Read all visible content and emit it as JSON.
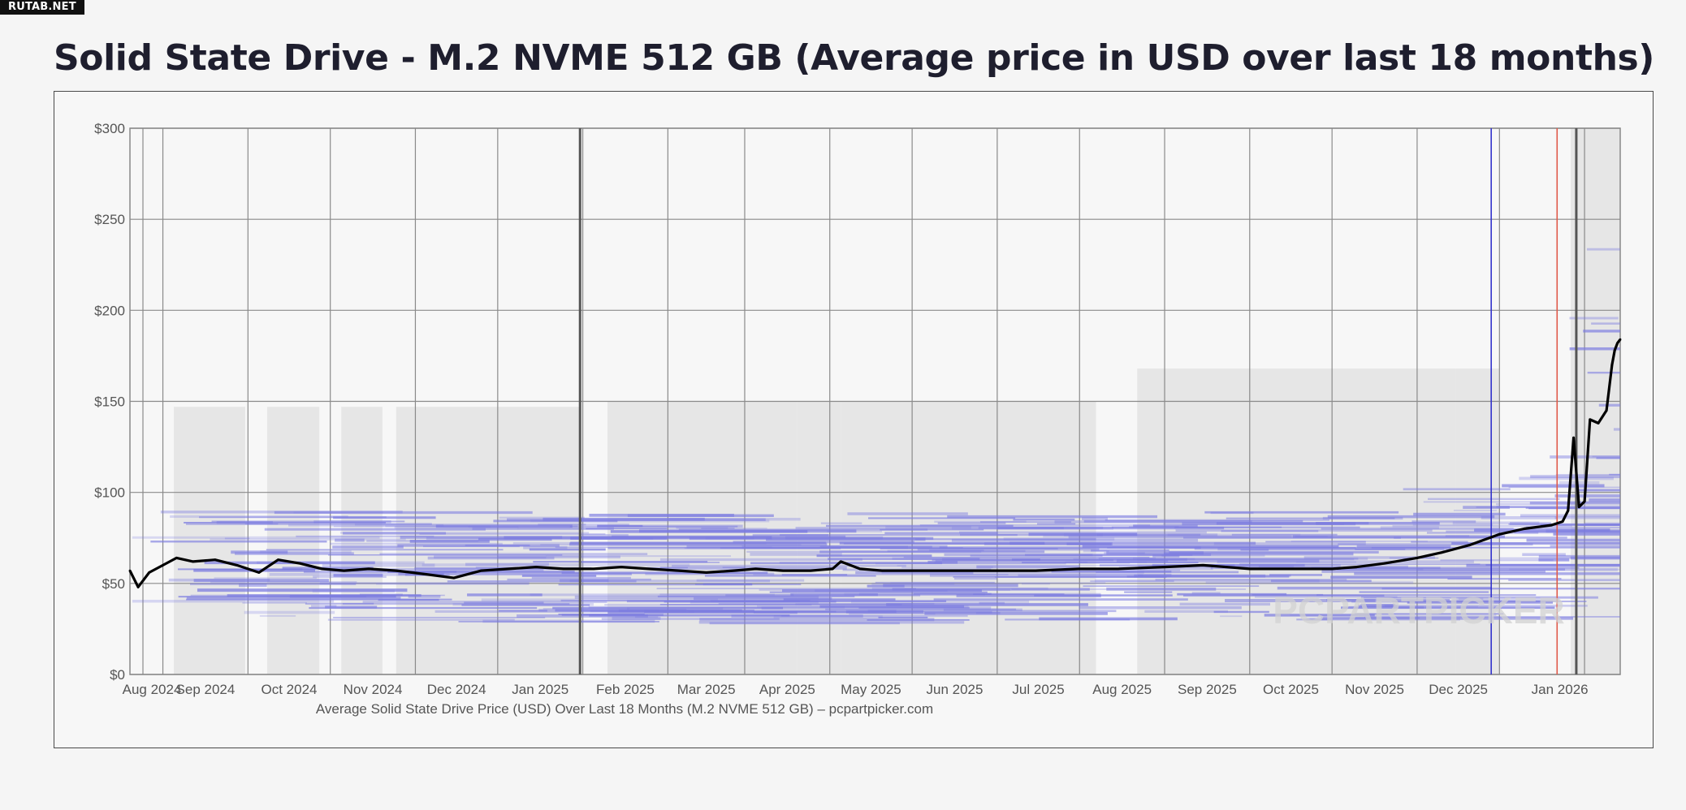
{
  "badge": "RUTAB.NET",
  "title": "Solid State Drive - M.2 NVME 512 GB (Average price in USD over last 18 months)",
  "watermark": "PCPARTPICKER",
  "colors": {
    "average_line": "#000000",
    "retailer_price_lines": "#7b7be0",
    "price_range_band": "#e6e6e6",
    "marker_blue": "#3333cc",
    "marker_red": "#e05a4a",
    "marker_dark": "#555555"
  },
  "chart_data": {
    "type": "line",
    "title": "",
    "xlabel": "Average Solid State Drive Price (USD) Over Last 18 Months (M.2 NVME 512 GB) – pcpartpicker.com",
    "ylabel": "",
    "ylim": [
      0,
      300
    ],
    "xlim": [
      "2024-07-20",
      "2026-01-14"
    ],
    "yticks": [
      0,
      50,
      100,
      150,
      200,
      250,
      300
    ],
    "yticklabels": [
      "$0",
      "$50",
      "$100",
      "$150",
      "$200",
      "$250",
      "$300"
    ],
    "xticklabels": [
      "Aug 2024",
      "Sep 2024",
      "Oct 2024",
      "Nov 2024",
      "Dec 2024",
      "Jan 2025",
      "Feb 2025",
      "Mar 2025",
      "Apr 2025",
      "May 2025",
      "Jun 2025",
      "Jul 2025",
      "Aug 2025",
      "Sep 2025",
      "Oct 2025",
      "Nov 2025",
      "Dec 2025",
      "Jan 2026"
    ],
    "grid": true,
    "legend": "none",
    "series": [
      {
        "x": [
          "2024-07-20",
          "2024-07-23",
          "2024-07-27",
          "2024-08-01",
          "2024-08-06",
          "2024-08-12",
          "2024-08-20",
          "2024-08-28",
          "2024-09-05",
          "2024-09-12",
          "2024-09-20",
          "2024-09-28",
          "2024-10-06",
          "2024-10-15",
          "2024-10-25",
          "2024-11-05",
          "2024-11-15",
          "2024-11-25",
          "2024-12-05",
          "2024-12-15",
          "2024-12-25",
          "2025-01-05",
          "2025-01-15",
          "2025-01-25",
          "2025-02-05",
          "2025-02-15",
          "2025-02-25",
          "2025-03-05",
          "2025-03-15",
          "2025-03-25",
          "2025-04-02",
          "2025-04-05",
          "2025-04-12",
          "2025-04-20",
          "2025-05-01",
          "2025-05-15",
          "2025-06-01",
          "2025-06-15",
          "2025-07-01",
          "2025-07-15",
          "2025-08-01",
          "2025-08-15",
          "2025-09-01",
          "2025-09-15",
          "2025-10-01",
          "2025-10-10",
          "2025-10-20",
          "2025-11-01",
          "2025-11-10",
          "2025-11-20",
          "2025-12-01",
          "2025-12-10",
          "2025-12-20",
          "2025-12-24",
          "2025-12-26",
          "2025-12-28",
          "2025-12-30",
          "2026-01-01",
          "2026-01-03",
          "2026-01-06",
          "2026-01-09",
          "2026-01-11",
          "2026-01-12",
          "2026-01-13",
          "2026-01-14"
        ],
        "y": [
          57,
          48,
          56,
          60,
          64,
          62,
          63,
          60,
          56,
          63,
          61,
          58,
          57,
          58,
          57,
          55,
          53,
          57,
          58,
          59,
          58,
          58,
          59,
          58,
          57,
          56,
          57,
          58,
          57,
          57,
          58,
          62,
          58,
          57,
          57,
          57,
          57,
          57,
          58,
          58,
          59,
          60,
          58,
          58,
          58,
          59,
          61,
          64,
          67,
          71,
          77,
          80,
          82,
          84,
          90,
          130,
          92,
          95,
          140,
          138,
          145,
          170,
          178,
          182,
          184
        ]
      }
    ]
  },
  "bands": [
    {
      "from": "2024-08-05",
      "to": "2024-08-31",
      "top": 147
    },
    {
      "from": "2024-09-08",
      "to": "2024-09-27",
      "top": 147
    },
    {
      "from": "2024-10-05",
      "to": "2024-10-20",
      "top": 147
    },
    {
      "from": "2024-10-25",
      "to": "2024-12-31",
      "top": 147
    },
    {
      "from": "2025-01-10",
      "to": "2025-03-20",
      "top": 150
    },
    {
      "from": "2025-03-20",
      "to": "2025-04-05",
      "top": 150
    },
    {
      "from": "2025-04-05",
      "to": "2025-07-07",
      "top": 150
    },
    {
      "from": "2025-07-22",
      "to": "2025-11-15",
      "top": 168
    },
    {
      "from": "2025-11-15",
      "to": "2025-12-01",
      "top": 168
    },
    {
      "from": "2025-12-27",
      "to": "2026-01-14",
      "top": 300
    }
  ],
  "markers": [
    {
      "date": "2024-12-31",
      "color": "#555555"
    },
    {
      "date": "2025-11-28",
      "color": "#3333cc"
    },
    {
      "date": "2025-12-22",
      "color": "#e05a4a"
    },
    {
      "date": "2025-12-29",
      "color": "#555555"
    }
  ]
}
